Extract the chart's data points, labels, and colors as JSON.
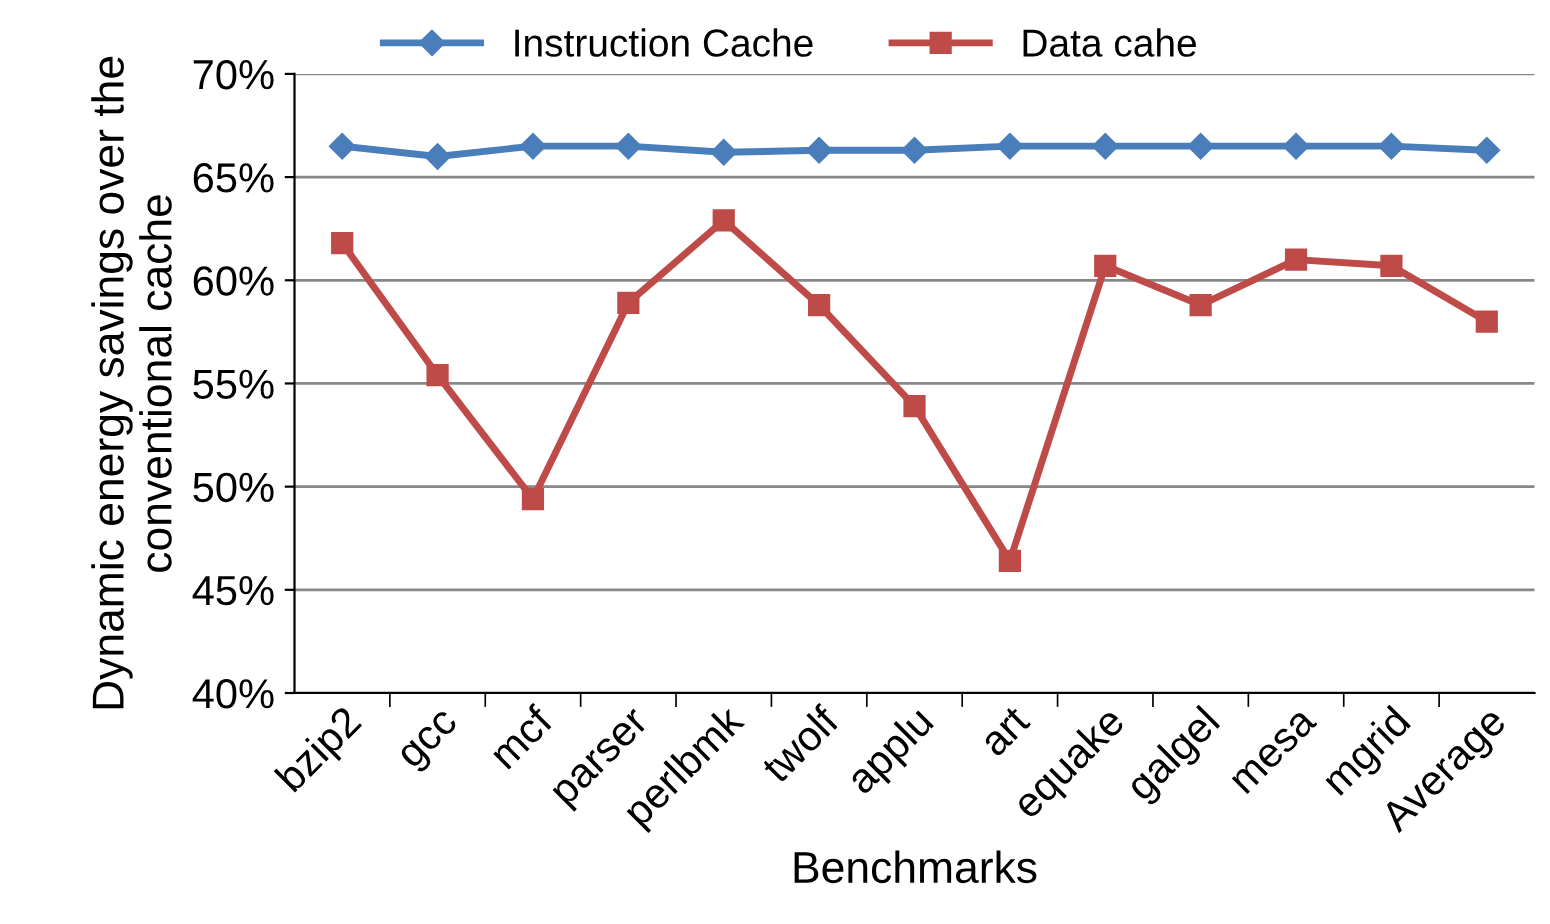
{
  "chart_data": {
    "type": "line",
    "xlabel": "Benchmarks",
    "ylabel": "Dynamic energy savings over the\nconventional cache",
    "categories": [
      "bzip2",
      "gcc",
      "mcf",
      "parser",
      "perlbmk",
      "twolf",
      "applu",
      "art",
      "equake",
      "galgel",
      "mesa",
      "mgrid",
      "Average"
    ],
    "series": [
      {
        "name": "Instruction Cache",
        "color": "#4a7ebb",
        "marker": "diamond",
        "values": [
          66.5,
          66.0,
          66.5,
          66.5,
          66.2,
          66.3,
          66.3,
          66.5,
          66.5,
          66.5,
          66.5,
          66.5,
          66.3
        ]
      },
      {
        "name": "Data cahe",
        "color": "#be4b48",
        "marker": "square",
        "values": [
          61.8,
          55.4,
          49.4,
          58.9,
          62.9,
          58.8,
          53.9,
          46.4,
          60.7,
          58.8,
          61.0,
          60.7,
          58.0
        ]
      }
    ],
    "ylim": [
      40,
      70
    ],
    "yticks": [
      {
        "value": 40,
        "label": "40%"
      },
      {
        "value": 45,
        "label": "45%"
      },
      {
        "value": 50,
        "label": "50%"
      },
      {
        "value": 55,
        "label": "55%"
      },
      {
        "value": 60,
        "label": "60%"
      },
      {
        "value": 65,
        "label": "65%"
      },
      {
        "value": 70,
        "label": "70%"
      }
    ],
    "grid": "y",
    "legend": "top",
    "line_style": "solid"
  }
}
